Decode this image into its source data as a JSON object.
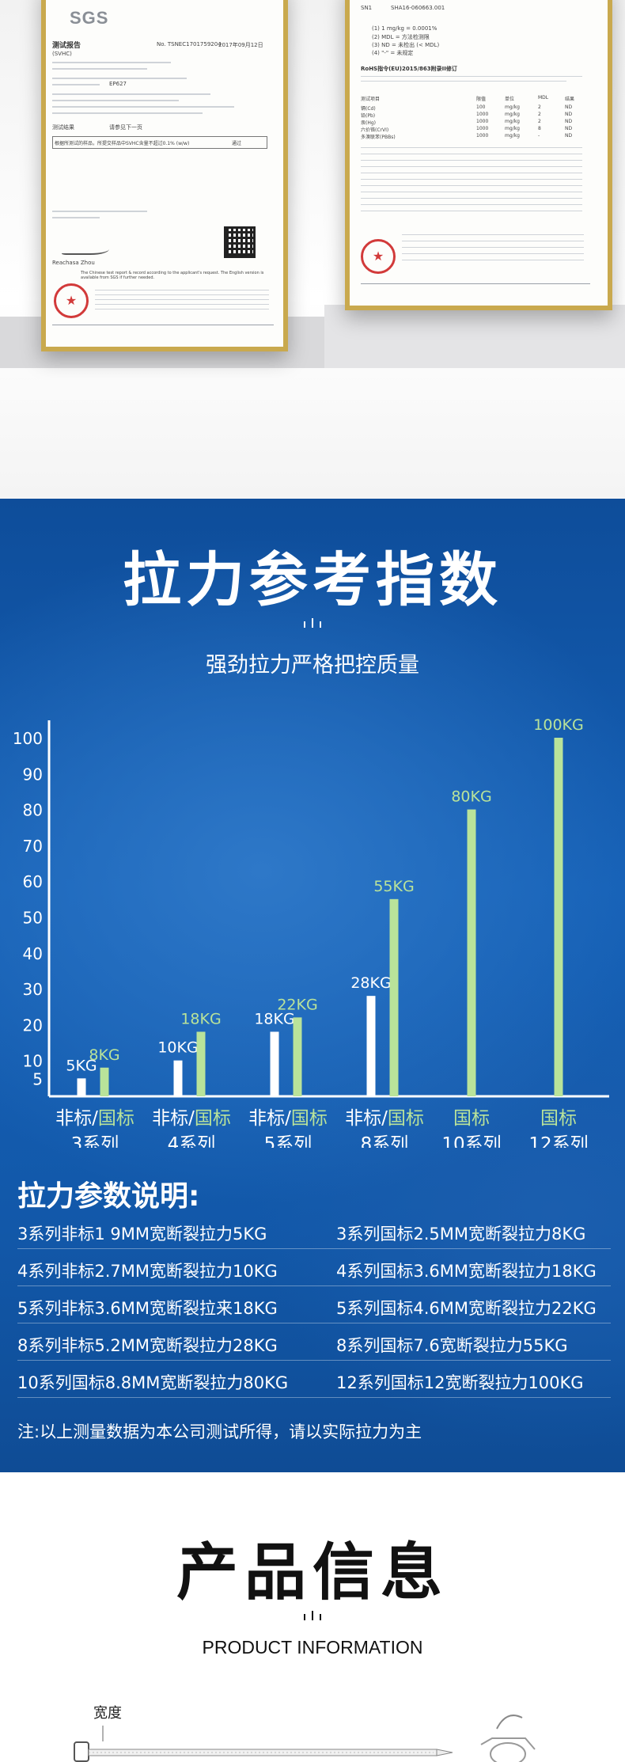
{
  "certificates": {
    "left": {
      "logo": "SGS",
      "report_title": "测试报告",
      "report_sub": "(SVHC)",
      "report_no": "No. TSNEC1701759204",
      "report_date": "2017年09月12日",
      "sample": "EP627",
      "result_label": "测试结果",
      "result_value": "请参见下一页",
      "conclusion": "根据所测试的样品，所提交样品中SVHC含量不超过0.1% (w/w)",
      "conclusion_status": "通过",
      "signer": "Reachasa Zhou",
      "note_en": "The Chinese test report & record according to the applicant's request. The English version is available from SGS if further needed."
    },
    "right": {
      "header_sn": "SN1",
      "header_code": "SHA16-060663.001",
      "notes": [
        "(1) 1 mg/kg = 0.0001%",
        "(2) MDL = 方法检测限",
        "(3) ND = 未检出 (< MDL)",
        "(4) \"-\" = 未规定"
      ],
      "heading": "RoHS指令(EU)2015/863附录II修订",
      "table_header": [
        "测试项目",
        "限值",
        "单位",
        "MDL",
        "结果"
      ],
      "table_rows": [
        [
          "镉(Cd)",
          "100",
          "mg/kg",
          "2",
          "ND"
        ],
        [
          "铅(Pb)",
          "1000",
          "mg/kg",
          "2",
          "ND"
        ],
        [
          "汞(Hg)",
          "1000",
          "mg/kg",
          "2",
          "ND"
        ],
        [
          "六价铬(CrVI)",
          "1000",
          "mg/kg",
          "8",
          "ND"
        ],
        [
          "多溴联苯(PBBs)",
          "1000",
          "mg/kg",
          "-",
          "ND"
        ]
      ]
    }
  },
  "chart_section": {
    "title": "拉力参考指数",
    "subtitle": "强劲拉力严格把控质量"
  },
  "chart_data": {
    "type": "bar",
    "title": "拉力参考指数",
    "ylim": [
      0,
      100
    ],
    "yticks": [
      5,
      10,
      20,
      30,
      40,
      50,
      60,
      70,
      80,
      90,
      100
    ],
    "grid": false,
    "categories": [
      {
        "label_a": "非标",
        "label_sep": "/",
        "label_b": "国标",
        "series_label": "3系列"
      },
      {
        "label_a": "非标",
        "label_sep": "/",
        "label_b": "国标",
        "series_label": "4系列"
      },
      {
        "label_a": "非标",
        "label_sep": "/",
        "label_b": "国标",
        "series_label": "5系列"
      },
      {
        "label_a": "非标",
        "label_sep": "/",
        "label_b": "国标",
        "series_label": "8系列"
      },
      {
        "label_a": "",
        "label_sep": "",
        "label_b": "国标",
        "series_label": "10系列"
      },
      {
        "label_a": "",
        "label_sep": "",
        "label_b": "国标",
        "series_label": "12系列"
      }
    ],
    "series": [
      {
        "values": [
          5,
          10,
          18,
          28,
          null,
          null
        ],
        "labels": [
          "5KG",
          "10KG",
          "18KG",
          "28KG",
          "",
          ""
        ],
        "color": "#ffffff"
      },
      {
        "values": [
          8,
          18,
          22,
          55,
          80,
          100
        ],
        "labels": [
          "8KG",
          "18KG",
          "22KG",
          "55KG",
          "80KG",
          "100KG"
        ],
        "color": "#b9e39a"
      }
    ],
    "label_colors": {
      "非标": "#ffffff",
      "国标": "#b9e39a"
    }
  },
  "params": {
    "heading": "拉力参数说明:",
    "items": [
      "3系列非标1 9MM宽断裂拉力5KG",
      "3系列国标2.5MM宽断裂拉力8KG",
      "4系列非标2.7MM宽断裂拉力10KG",
      "4系列国标3.6MM宽断裂拉力18KG",
      "5系列非标3.6MM宽断裂拉来18KG",
      "5系列国标4.6MM宽断裂拉力22KG",
      "8系列非标5.2MM宽断裂拉力28KG",
      "8系列国标7.6宽断裂拉力55KG",
      "10系列国标8.8MM宽断裂拉力80KG",
      "12系列国标12宽断裂拉力100KG"
    ],
    "note": "注:以上测量数据为本公司测试所得，请以实际拉力为主"
  },
  "product_info": {
    "title": "产品信息",
    "subtitle": "PRODUCT INFORMATION",
    "width_label": "宽度"
  },
  "colors": {
    "chart_bg": "#1560b6",
    "national_standard": "#b9e39a",
    "non_standard": "#ffffff",
    "frame_gold": "#c9a94e"
  }
}
